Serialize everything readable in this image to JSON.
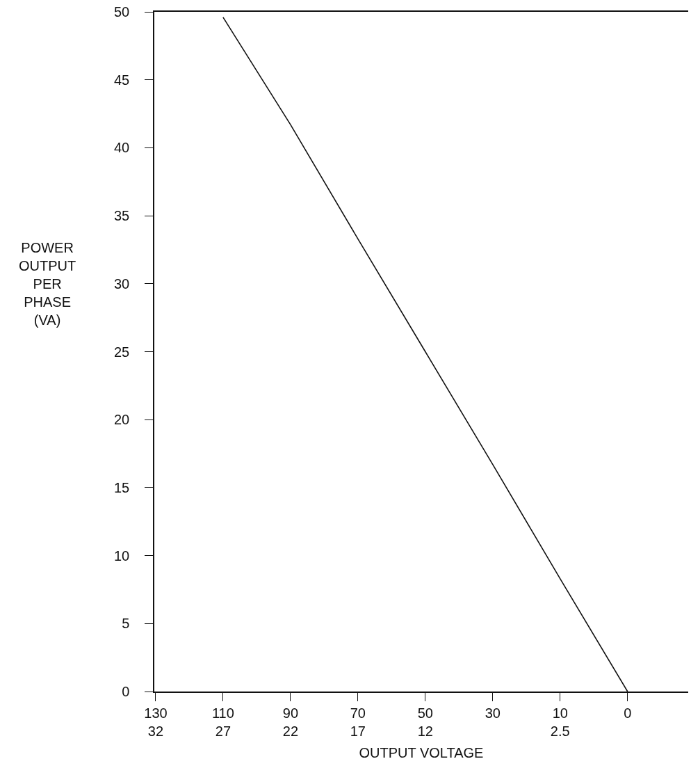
{
  "chart_data": {
    "type": "line",
    "xlabel": "OUTPUT VOLTAGE",
    "ylabel": "POWER\nOUTPUT\nPER\nPHASE\n(VA)",
    "categories": [
      "130\n32",
      "110\n27",
      "90\n22",
      "70\n17",
      "50\n12",
      "30",
      "10\n2.5",
      "0"
    ],
    "series": [
      {
        "color": "#111111",
        "values": [
          null,
          49.6,
          41.7,
          33.3,
          25,
          16.7,
          8.3,
          0
        ]
      }
    ],
    "ylim": [
      0,
      50
    ],
    "yticks": [
      0,
      5,
      10,
      15,
      20,
      25,
      30,
      35,
      40,
      45,
      50
    ],
    "marker": "none",
    "line_style": "solid"
  }
}
